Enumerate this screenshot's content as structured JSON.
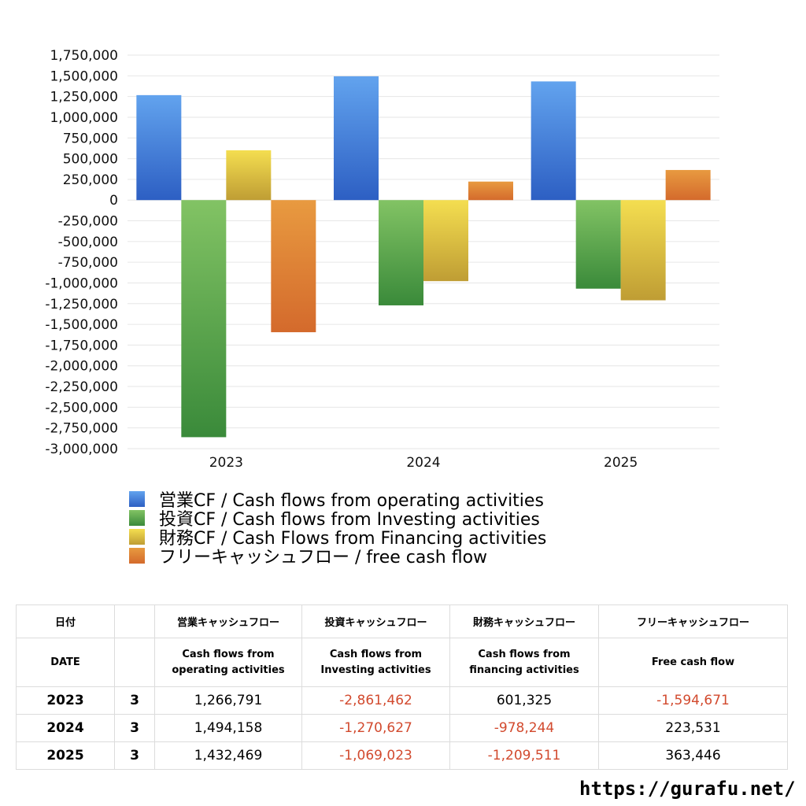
{
  "chart_data": {
    "type": "bar",
    "categories": [
      "2023",
      "2024",
      "2025"
    ],
    "series": [
      {
        "name": "営業CF / Cash flows from operating activities",
        "values": [
          1266791,
          1494158,
          1432469
        ],
        "color_top": "#62a3ee",
        "color_bottom": "#2d5fc3"
      },
      {
        "name": "投資CF / Cash flows from Investing activities",
        "values": [
          -2861462,
          -1270627,
          -1069023
        ],
        "color_top": "#82c364",
        "color_bottom": "#3a8a3a"
      },
      {
        "name": "財務CF / Cash Flows from Financing activities",
        "values": [
          601325,
          -978244,
          -1209511
        ],
        "color_top": "#f4de50",
        "color_bottom": "#bf9d34"
      },
      {
        "name": "フリーキャッシュフロー / free cash flow",
        "values": [
          -1594671,
          223531,
          363446
        ],
        "color_top": "#e89a40",
        "color_bottom": "#d46a2c"
      }
    ],
    "ylim": [
      -3000000,
      1750000
    ],
    "ytick_step": 250000,
    "yticks": [
      "1,750,000",
      "1,500,000",
      "1,250,000",
      "1,000,000",
      "750,000",
      "500,000",
      "250,000",
      "0",
      "-250,000",
      "-500,000",
      "-750,000",
      "-1,000,000",
      "-1,250,000",
      "-1,500,000",
      "-1,750,000",
      "-2,000,000",
      "-2,250,000",
      "-2,500,000",
      "-2,750,000",
      "-3,000,000"
    ],
    "grid": true,
    "legend_position": "bottom"
  },
  "table": {
    "headers": [
      "日付",
      "",
      "営業キャッシュフロー",
      "投資キャッシュフロー",
      "財務キャッシュフロー",
      "フリーキャッシュフロー"
    ],
    "subheaders": [
      [
        "DATE"
      ],
      [
        ""
      ],
      [
        "Cash flows from",
        "operating activities"
      ],
      [
        "Cash flows from",
        "Investing activities"
      ],
      [
        "Cash flows from",
        "financing activities"
      ],
      [
        "Free cash flow"
      ]
    ],
    "rows": [
      {
        "year": "2023",
        "month": "3",
        "values": [
          "1,266,791",
          "-2,861,462",
          "601,325",
          "-1,594,671"
        ]
      },
      {
        "year": "2024",
        "month": "3",
        "values": [
          "1,494,158",
          "-1,270,627",
          "-978,244",
          "223,531"
        ]
      },
      {
        "year": "2025",
        "month": "3",
        "values": [
          "1,432,469",
          "-1,069,023",
          "-1,209,511",
          "363,446"
        ]
      }
    ]
  },
  "footer": {
    "url": "https://gurafu.net/"
  }
}
